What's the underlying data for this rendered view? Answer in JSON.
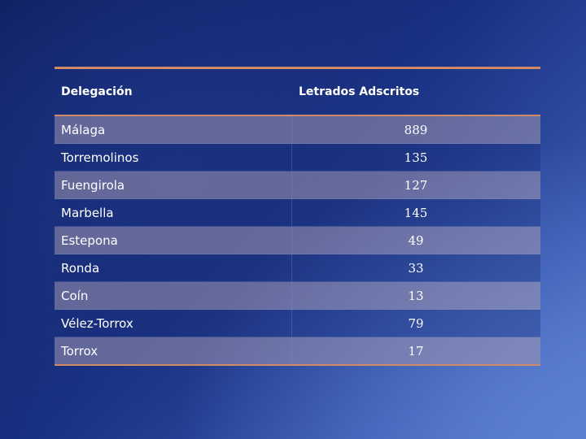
{
  "table": {
    "headers": [
      "Delegación",
      "Letrados Adscritos"
    ],
    "rows": [
      {
        "delegacion": "Málaga",
        "letrados": "889"
      },
      {
        "delegacion": "Torremolinos",
        "letrados": "135"
      },
      {
        "delegacion": "Fuengirola",
        "letrados": "127"
      },
      {
        "delegacion": "Marbella",
        "letrados": "145"
      },
      {
        "delegacion": "Estepona",
        "letrados": "49"
      },
      {
        "delegacion": "Ronda",
        "letrados": "33"
      },
      {
        "delegacion": "Coín",
        "letrados": "13"
      },
      {
        "delegacion": "Vélez-Torrox",
        "letrados": "79"
      },
      {
        "delegacion": "Torrox",
        "letrados": "17"
      }
    ]
  },
  "colors": {
    "rule": "#d28a66",
    "background_dark": "#0c1a5a",
    "background_light": "#5b7fd1",
    "text": "#ffffff"
  }
}
